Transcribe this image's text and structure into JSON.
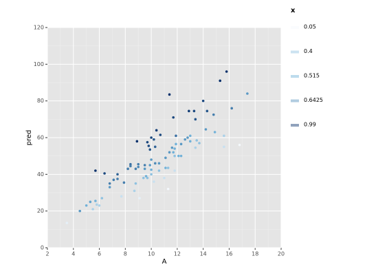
{
  "chart_data": {
    "type": "scatter",
    "x_label": "A",
    "y_label": "pred",
    "xlim": [
      2,
      20
    ],
    "xticks": [
      2,
      4,
      6,
      8,
      10,
      12,
      14,
      16,
      18,
      20
    ],
    "ylim": [
      0,
      120
    ],
    "yticks": [
      0,
      20,
      40,
      60,
      80,
      100,
      120
    ],
    "grid": true,
    "colorscale": [
      "#f4f8fc",
      "#6baed6",
      "#08306b"
    ],
    "legend": {
      "title": "x",
      "values": [
        0.05,
        0.4,
        0.515,
        0.6425,
        0.99
      ]
    },
    "x": [
      3.5,
      4.5,
      5.0,
      5.3,
      5.7,
      5.8,
      6.0,
      5.5,
      6.2,
      5.7,
      6.4,
      6.8,
      6.8,
      7.1,
      7.4,
      7.4,
      7.7,
      7.9,
      8.2,
      8.4,
      8.4,
      8.7,
      8.8,
      8.9,
      8.8,
      9.0,
      9.0,
      9.1,
      9.4,
      9.5,
      9.5,
      9.6,
      9.7,
      9.7,
      9.8,
      9.9,
      9.9,
      10.0,
      10.0,
      10.0,
      10.0,
      10.2,
      10.2,
      10.3,
      10.3,
      10.4,
      10.6,
      10.6,
      10.7,
      11.0,
      11.1,
      11.1,
      11.3,
      11.3,
      11.4,
      11.4,
      11.6,
      11.7,
      11.7,
      11.8,
      11.8,
      11.8,
      11.9,
      11.9,
      12.1,
      12.3,
      12.3,
      12.6,
      12.8,
      12.9,
      13.0,
      13.0,
      13.3,
      13.4,
      13.4,
      13.5,
      13.7,
      14.0,
      14.2,
      14.3,
      14.8,
      14.9,
      15.3,
      15.6,
      15.6,
      15.8,
      16.2,
      16.8,
      17.4
    ],
    "values": [
      13.5,
      20,
      23,
      25,
      25.5,
      23.5,
      23,
      21,
      27,
      42,
      40.5,
      35,
      33,
      37,
      40,
      37.5,
      28,
      35.5,
      43,
      45.5,
      44.5,
      31,
      35,
      58,
      43,
      45.5,
      44,
      27,
      38,
      45,
      43,
      39,
      38,
      57.5,
      55.5,
      45,
      53.5,
      42.5,
      40,
      60,
      48,
      36,
      59,
      55,
      46,
      64,
      46,
      42,
      61.5,
      38,
      49,
      43.5,
      32,
      43.5,
      83.5,
      52,
      54.5,
      71,
      52,
      54,
      42,
      50,
      56.5,
      61,
      50,
      50,
      56.5,
      59,
      60,
      74.5,
      61,
      58,
      74.5,
      70,
      54.5,
      58.5,
      57,
      80,
      64.5,
      74.5,
      72.5,
      63,
      91,
      61,
      55,
      96,
      76,
      56,
      84
    ],
    "color_values": [
      0.1,
      0.6,
      0.5,
      0.55,
      0.5,
      0.3,
      0.3,
      0.3,
      0.4,
      0.99,
      0.9,
      0.7,
      0.6,
      0.7,
      0.8,
      0.7,
      0.2,
      0.7,
      0.7,
      0.75,
      0.7,
      0.3,
      0.4,
      0.99,
      0.7,
      0.7,
      0.65,
      0.1,
      0.4,
      0.7,
      0.6,
      0.5,
      0.4,
      0.9,
      0.9,
      0.6,
      0.85,
      0.5,
      0.4,
      0.9,
      0.6,
      0.2,
      0.85,
      0.8,
      0.65,
      0.95,
      0.6,
      0.4,
      0.9,
      0.2,
      0.6,
      0.5,
      0.05,
      0.4,
      0.99,
      0.6,
      0.6,
      0.9,
      0.5,
      0.5,
      0.2,
      0.4,
      0.5,
      0.75,
      0.5,
      0.5,
      0.6,
      0.6,
      0.6,
      0.95,
      0.5,
      0.5,
      0.9,
      0.85,
      0.3,
      0.4,
      0.4,
      0.9,
      0.6,
      0.85,
      0.7,
      0.5,
      0.99,
      0.3,
      0.2,
      0.99,
      0.7,
      0.05,
      0.6
    ]
  }
}
